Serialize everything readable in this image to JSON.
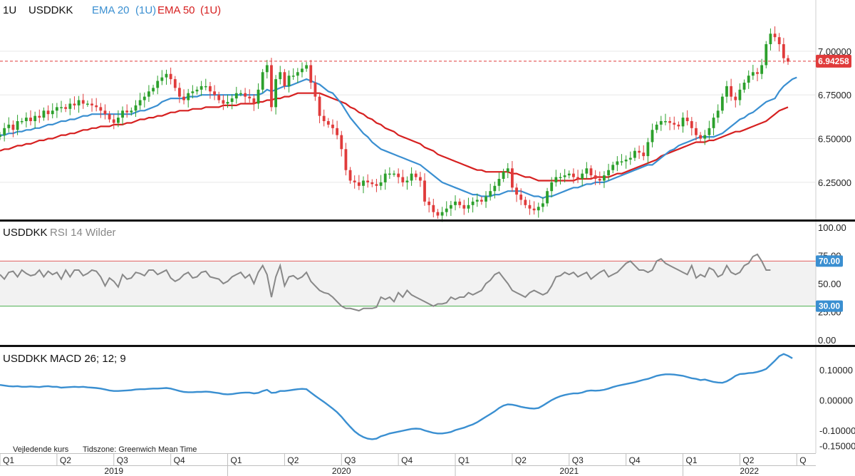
{
  "colors": {
    "up": "#2ca02c",
    "down": "#e03b3b",
    "ema20": "#3a8fd1",
    "ema50": "#d62020",
    "rsi_line": "#888888",
    "rsi_upper": "#e06060",
    "rsi_lower": "#4caf50",
    "rsi_band": "#f2f2f2",
    "macd": "#3a8fd1",
    "price_marker": "#e03b3b",
    "rsi_badge": "#3a8fd1",
    "divider": "#111111",
    "grid": "#e6e6e6"
  },
  "header": {
    "interval": "1U",
    "symbol": "USDDKK",
    "ema20_label": "EMA 20",
    "ema20_interval": "(1U)",
    "ema50_label": "EMA 50",
    "ema50_interval": "(1U)"
  },
  "price_panel": {
    "last_price": "6.94258",
    "ylim": [
      6.05,
      7.26
    ],
    "yticks": [
      "7.00000",
      "6.75000",
      "6.50000",
      "6.25000"
    ]
  },
  "rsi_panel": {
    "symbol": "USDDKK",
    "label": "RSI 14 Wilder",
    "upper_level": "70.00",
    "lower_level": "30.00",
    "ylim": [
      -5,
      105
    ],
    "yticks": [
      "100.00",
      "75.00",
      "50.00",
      "25.00",
      "0.00"
    ]
  },
  "macd_panel": {
    "symbol": "USDDKK",
    "label": "MACD 26; 12; 9",
    "ylim": [
      -0.175,
      0.175
    ],
    "yticks": [
      "0.10000",
      "0.00000",
      "-0.10000",
      "-0.15000"
    ]
  },
  "footer": {
    "note": "Vejledende kurs",
    "timezone": "Tidszone: Greenwich Mean Time",
    "quarters": [
      "Q1",
      "Q2",
      "Q3",
      "Q4",
      "Q1",
      "Q2",
      "Q3",
      "Q4",
      "Q1",
      "Q2",
      "Q3",
      "Q4",
      "Q1",
      "Q2",
      "Q"
    ],
    "years": [
      "2019",
      "2020",
      "2021",
      "2022"
    ]
  },
  "chart_data": [
    {
      "type": "candlestick",
      "title": "USDDKK",
      "interval": "1U",
      "x_start": "2019-Q1",
      "x_end": "2022-Q2",
      "ylim": [
        6.05,
        7.26
      ],
      "close": [
        6.52,
        6.56,
        6.58,
        6.55,
        6.6,
        6.6,
        6.62,
        6.6,
        6.63,
        6.62,
        6.66,
        6.64,
        6.66,
        6.68,
        6.68,
        6.67,
        6.7,
        6.69,
        6.72,
        6.7,
        6.7,
        6.69,
        6.68,
        6.66,
        6.64,
        6.61,
        6.59,
        6.62,
        6.66,
        6.65,
        6.66,
        6.69,
        6.72,
        6.74,
        6.77,
        6.79,
        6.83,
        6.85,
        6.87,
        6.84,
        6.79,
        6.74,
        6.72,
        6.76,
        6.77,
        6.78,
        6.8,
        6.8,
        6.77,
        6.75,
        6.72,
        6.7,
        6.71,
        6.73,
        6.76,
        6.76,
        6.74,
        6.73,
        6.7,
        6.78,
        6.88,
        6.92,
        6.68,
        6.84,
        6.88,
        6.8,
        6.86,
        6.86,
        6.88,
        6.9,
        6.92,
        6.82,
        6.74,
        6.63,
        6.6,
        6.58,
        6.56,
        6.52,
        6.44,
        6.32,
        6.26,
        6.25,
        6.23,
        6.26,
        6.25,
        6.24,
        6.23,
        6.25,
        6.3,
        6.3,
        6.3,
        6.28,
        6.25,
        6.26,
        6.3,
        6.28,
        6.26,
        6.14,
        6.12,
        6.08,
        6.06,
        6.08,
        6.1,
        6.12,
        6.14,
        6.12,
        6.1,
        6.12,
        6.14,
        6.15,
        6.14,
        6.17,
        6.2,
        6.23,
        6.27,
        6.31,
        6.33,
        6.22,
        6.18,
        6.15,
        6.12,
        6.1,
        6.09,
        6.11,
        6.13,
        6.2,
        6.25,
        6.28,
        6.28,
        6.29,
        6.3,
        6.28,
        6.27,
        6.3,
        6.33,
        6.29,
        6.27,
        6.26,
        6.29,
        6.32,
        6.35,
        6.37,
        6.37,
        6.38,
        6.39,
        6.43,
        6.42,
        6.4,
        6.48,
        6.55,
        6.58,
        6.6,
        6.6,
        6.59,
        6.58,
        6.57,
        6.62,
        6.6,
        6.56,
        6.52,
        6.5,
        6.52,
        6.56,
        6.62,
        6.66,
        6.74,
        6.8,
        6.74,
        6.72,
        6.78,
        6.82,
        6.86,
        6.88,
        6.87,
        6.92,
        7.04,
        7.1,
        7.08,
        7.04,
        6.96,
        6.94
      ]
    },
    {
      "type": "line",
      "name": "EMA 20",
      "x_start": "2019-Q1",
      "x_end": "2022-Q2",
      "values": [
        6.52,
        6.52,
        6.53,
        6.53,
        6.54,
        6.54,
        6.55,
        6.55,
        6.56,
        6.56,
        6.57,
        6.58,
        6.58,
        6.59,
        6.6,
        6.6,
        6.61,
        6.61,
        6.62,
        6.63,
        6.63,
        6.64,
        6.64,
        6.64,
        6.64,
        6.64,
        6.64,
        6.64,
        6.64,
        6.64,
        6.64,
        6.65,
        6.66,
        6.66,
        6.67,
        6.68,
        6.69,
        6.71,
        6.72,
        6.73,
        6.73,
        6.73,
        6.73,
        6.74,
        6.74,
        6.74,
        6.75,
        6.75,
        6.75,
        6.75,
        6.75,
        6.75,
        6.75,
        6.75,
        6.75,
        6.75,
        6.75,
        6.75,
        6.75,
        6.75,
        6.76,
        6.78,
        6.77,
        6.78,
        6.79,
        6.8,
        6.8,
        6.81,
        6.82,
        6.83,
        6.84,
        6.83,
        6.82,
        6.81,
        6.79,
        6.77,
        6.76,
        6.73,
        6.7,
        6.66,
        6.62,
        6.59,
        6.56,
        6.53,
        6.51,
        6.48,
        6.46,
        6.44,
        6.43,
        6.42,
        6.41,
        6.4,
        6.39,
        6.38,
        6.37,
        6.36,
        6.35,
        6.33,
        6.31,
        6.29,
        6.27,
        6.25,
        6.24,
        6.23,
        6.22,
        6.21,
        6.2,
        6.19,
        6.18,
        6.18,
        6.17,
        6.17,
        6.17,
        6.18,
        6.18,
        6.19,
        6.2,
        6.2,
        6.2,
        6.2,
        6.19,
        6.18,
        6.17,
        6.17,
        6.16,
        6.17,
        6.17,
        6.18,
        6.19,
        6.2,
        6.21,
        6.22,
        6.22,
        6.23,
        6.24,
        6.24,
        6.25,
        6.25,
        6.25,
        6.26,
        6.27,
        6.28,
        6.29,
        6.3,
        6.31,
        6.32,
        6.33,
        6.34,
        6.35,
        6.35,
        6.37,
        6.39,
        6.41,
        6.43,
        6.44,
        6.46,
        6.47,
        6.48,
        6.49,
        6.5,
        6.51,
        6.51,
        6.51,
        6.51,
        6.52,
        6.53,
        6.55,
        6.57,
        6.59,
        6.61,
        6.62,
        6.64,
        6.65,
        6.67,
        6.69,
        6.71,
        6.72,
        6.73,
        6.77,
        6.8,
        6.82,
        6.84,
        6.85
      ]
    },
    {
      "type": "line",
      "name": "EMA 50",
      "x_start": "2019-Q1",
      "x_end": "2022-Q2",
      "values": [
        6.43,
        6.44,
        6.44,
        6.45,
        6.46,
        6.46,
        6.47,
        6.47,
        6.48,
        6.49,
        6.49,
        6.5,
        6.5,
        6.51,
        6.52,
        6.52,
        6.53,
        6.53,
        6.54,
        6.55,
        6.55,
        6.56,
        6.56,
        6.57,
        6.57,
        6.57,
        6.58,
        6.58,
        6.58,
        6.59,
        6.59,
        6.6,
        6.61,
        6.61,
        6.62,
        6.62,
        6.63,
        6.63,
        6.64,
        6.65,
        6.65,
        6.66,
        6.66,
        6.66,
        6.67,
        6.67,
        6.67,
        6.68,
        6.68,
        6.68,
        6.68,
        6.69,
        6.69,
        6.69,
        6.69,
        6.7,
        6.7,
        6.7,
        6.7,
        6.71,
        6.71,
        6.72,
        6.72,
        6.73,
        6.73,
        6.74,
        6.74,
        6.75,
        6.76,
        6.76,
        6.76,
        6.76,
        6.76,
        6.76,
        6.75,
        6.74,
        6.73,
        6.72,
        6.71,
        6.7,
        6.68,
        6.67,
        6.65,
        6.64,
        6.62,
        6.61,
        6.59,
        6.58,
        6.56,
        6.55,
        6.54,
        6.52,
        6.51,
        6.5,
        6.49,
        6.48,
        6.47,
        6.45,
        6.44,
        6.43,
        6.41,
        6.4,
        6.39,
        6.38,
        6.37,
        6.36,
        6.35,
        6.34,
        6.33,
        6.32,
        6.32,
        6.31,
        6.31,
        6.31,
        6.31,
        6.31,
        6.31,
        6.3,
        6.3,
        6.29,
        6.28,
        6.28,
        6.27,
        6.26,
        6.26,
        6.26,
        6.26,
        6.26,
        6.26,
        6.26,
        6.26,
        6.26,
        6.27,
        6.27,
        6.27,
        6.27,
        6.28,
        6.28,
        6.28,
        6.28,
        6.29,
        6.3,
        6.3,
        6.31,
        6.32,
        6.33,
        6.34,
        6.35,
        6.36,
        6.37,
        6.38,
        6.4,
        6.41,
        6.42,
        6.43,
        6.44,
        6.45,
        6.46,
        6.47,
        6.48,
        6.48,
        6.48,
        6.49,
        6.49,
        6.5,
        6.51,
        6.52,
        6.53,
        6.54,
        6.54,
        6.55,
        6.56,
        6.57,
        6.58,
        6.59,
        6.6,
        6.62,
        6.64,
        6.66,
        6.67,
        6.68
      ]
    },
    {
      "type": "line",
      "name": "RSI 14 Wilder",
      "x_start": "2019-Q1",
      "x_end": "2022-Q2",
      "ylim": [
        -5,
        105
      ],
      "values": [
        58,
        54,
        60,
        61,
        56,
        62,
        59,
        57,
        58,
        62,
        56,
        61,
        58,
        60,
        54,
        62,
        56,
        62,
        62,
        57,
        59,
        62,
        61,
        56,
        48,
        55,
        52,
        47,
        58,
        54,
        55,
        60,
        59,
        57,
        62,
        62,
        58,
        60,
        62,
        55,
        52,
        54,
        58,
        60,
        55,
        56,
        60,
        61,
        56,
        55,
        54,
        50,
        52,
        56,
        58,
        60,
        55,
        58,
        50,
        60,
        66,
        58,
        38,
        56,
        66,
        48,
        56,
        57,
        54,
        56,
        60,
        52,
        48,
        44,
        42,
        41,
        38,
        34,
        30,
        28,
        28,
        27,
        26,
        28,
        28,
        28,
        29,
        38,
        36,
        38,
        34,
        42,
        38,
        44,
        40,
        38,
        36,
        34,
        32,
        30,
        32,
        32,
        33,
        38,
        36,
        38,
        38,
        42,
        40,
        42,
        44,
        50,
        53,
        58,
        60,
        55,
        50,
        44,
        42,
        40,
        38,
        42,
        44,
        42,
        40,
        42,
        48,
        56,
        57,
        60,
        58,
        60,
        56,
        58,
        60,
        54,
        57,
        60,
        62,
        56,
        58,
        60,
        64,
        68,
        70,
        66,
        62,
        62,
        60,
        62,
        70,
        72,
        68,
        66,
        64,
        62,
        60,
        58,
        66,
        55,
        58,
        56,
        64,
        62,
        56,
        58,
        66,
        60,
        58,
        60,
        66,
        68,
        74,
        76,
        70,
        62,
        62
      ]
    },
    {
      "type": "line",
      "name": "MACD 26; 12; 9",
      "x_start": "2019-Q1",
      "x_end": "2022-Q2",
      "ylim": [
        -0.175,
        0.175
      ],
      "values": [
        0.05,
        0.048,
        0.046,
        0.045,
        0.046,
        0.044,
        0.044,
        0.045,
        0.044,
        0.043,
        0.045,
        0.046,
        0.044,
        0.044,
        0.041,
        0.042,
        0.043,
        0.044,
        0.043,
        0.044,
        0.042,
        0.041,
        0.04,
        0.038,
        0.035,
        0.032,
        0.03,
        0.03,
        0.031,
        0.032,
        0.033,
        0.035,
        0.036,
        0.036,
        0.037,
        0.038,
        0.038,
        0.039,
        0.04,
        0.038,
        0.034,
        0.03,
        0.027,
        0.026,
        0.026,
        0.027,
        0.027,
        0.028,
        0.027,
        0.025,
        0.023,
        0.02,
        0.019,
        0.02,
        0.022,
        0.024,
        0.025,
        0.025,
        0.022,
        0.024,
        0.03,
        0.034,
        0.024,
        0.025,
        0.03,
        0.03,
        0.032,
        0.034,
        0.036,
        0.037,
        0.036,
        0.025,
        0.014,
        0.004,
        -0.006,
        -0.017,
        -0.028,
        -0.04,
        -0.055,
        -0.072,
        -0.088,
        -0.103,
        -0.114,
        -0.122,
        -0.127,
        -0.129,
        -0.127,
        -0.119,
        -0.115,
        -0.11,
        -0.107,
        -0.104,
        -0.101,
        -0.098,
        -0.095,
        -0.094,
        -0.095,
        -0.1,
        -0.104,
        -0.108,
        -0.11,
        -0.11,
        -0.108,
        -0.105,
        -0.099,
        -0.095,
        -0.091,
        -0.085,
        -0.08,
        -0.073,
        -0.064,
        -0.055,
        -0.046,
        -0.037,
        -0.026,
        -0.018,
        -0.014,
        -0.015,
        -0.018,
        -0.022,
        -0.025,
        -0.027,
        -0.028,
        -0.026,
        -0.018,
        -0.009,
        0.0,
        0.007,
        0.013,
        0.017,
        0.02,
        0.022,
        0.022,
        0.025,
        0.03,
        0.032,
        0.031,
        0.032,
        0.034,
        0.038,
        0.043,
        0.047,
        0.05,
        0.053,
        0.056,
        0.059,
        0.063,
        0.067,
        0.07,
        0.075,
        0.08,
        0.083,
        0.085,
        0.085,
        0.084,
        0.082,
        0.08,
        0.076,
        0.072,
        0.07,
        0.066,
        0.068,
        0.064,
        0.06,
        0.058,
        0.057,
        0.062,
        0.07,
        0.08,
        0.086,
        0.087,
        0.089,
        0.09,
        0.093,
        0.097,
        0.103,
        0.116,
        0.13,
        0.145,
        0.152,
        0.146,
        0.138
      ]
    }
  ]
}
